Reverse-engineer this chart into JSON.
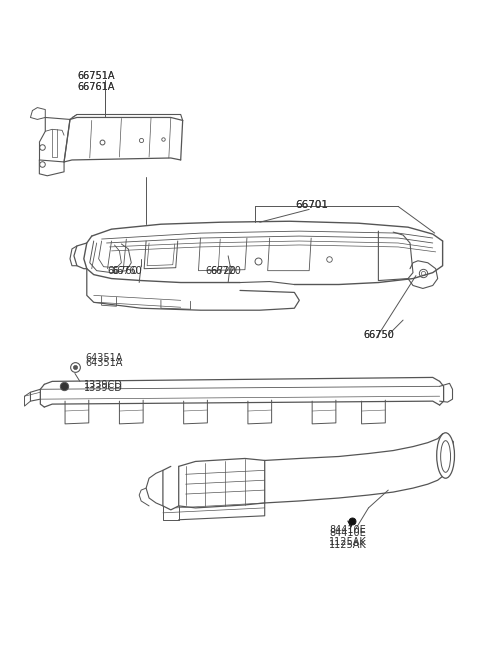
{
  "background_color": "#ffffff",
  "line_color": "#555555",
  "label_color": "#333333",
  "label_fontsize": 7.0,
  "fig_width": 4.8,
  "fig_height": 6.55,
  "dpi": 100,
  "parts": {
    "top_panel_label1": "66751A",
    "top_panel_label2": "66761A",
    "main_label": "66701",
    "left_label": "66760",
    "center_label": "66720",
    "right_label": "66750",
    "bolt1_label": "64351A",
    "bolt2_label": "1339CD",
    "bottom_label1": "84410E",
    "bottom_label2": "1125AK"
  }
}
